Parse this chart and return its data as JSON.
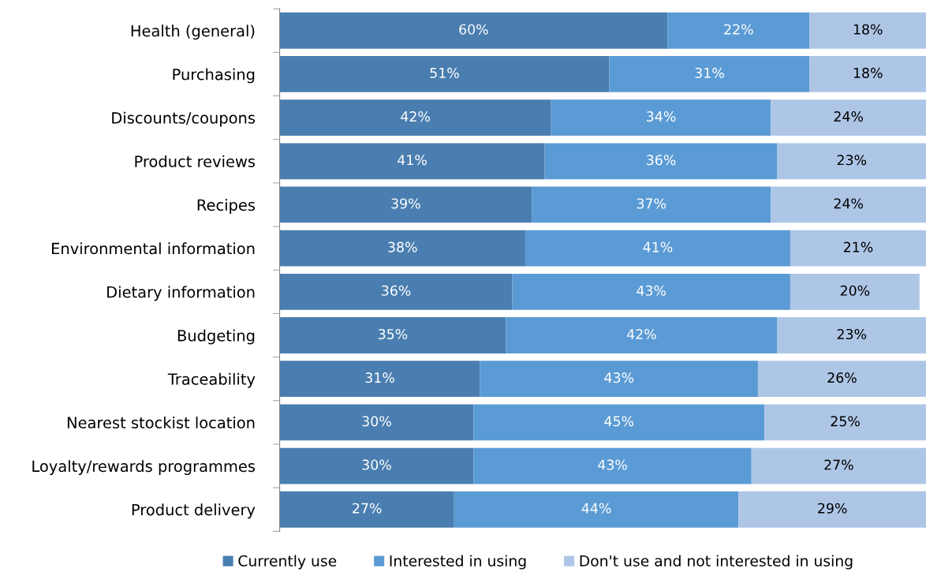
{
  "chart_data": {
    "type": "bar",
    "orientation": "horizontal",
    "stacked": true,
    "legend": "bottom",
    "grid": false,
    "tick_labels": "y",
    "categories": [
      "Health (general)",
      "Purchasing",
      "Discounts/coupons",
      "Product reviews",
      "Recipes",
      "Environmental information",
      "Dietary information",
      "Budgeting",
      "Traceability",
      "Nearest stockist location",
      "Loyalty/rewards programmes",
      "Product delivery"
    ],
    "series": [
      {
        "name": "Currently use",
        "color": "#4a7eb0",
        "values": [
          60,
          51,
          42,
          41,
          39,
          38,
          36,
          35,
          31,
          30,
          30,
          27
        ],
        "value_labels": [
          "60%",
          "51%",
          "42%",
          "41%",
          "39%",
          "38%",
          "36%",
          "35%",
          "31%",
          "30%",
          "30%",
          "27%"
        ]
      },
      {
        "name": "Interested in using",
        "color": "#5b9bd5",
        "values": [
          22,
          31,
          34,
          36,
          37,
          41,
          43,
          42,
          43,
          45,
          43,
          44
        ],
        "value_labels": [
          "22%",
          "31%",
          "34%",
          "36%",
          "37%",
          "41%",
          "43%",
          "42%",
          "43%",
          "45%",
          "43%",
          "44%"
        ]
      },
      {
        "name": "Don't use and not interested in using",
        "color": "#aec6e6",
        "values": [
          18,
          18,
          24,
          23,
          24,
          21,
          20,
          23,
          26,
          25,
          27,
          29
        ],
        "value_labels": [
          "18%",
          "18%",
          "24%",
          "23%",
          "24%",
          "21%",
          "20%",
          "23%",
          "26%",
          "25%",
          "27%",
          "29%"
        ]
      }
    ]
  }
}
